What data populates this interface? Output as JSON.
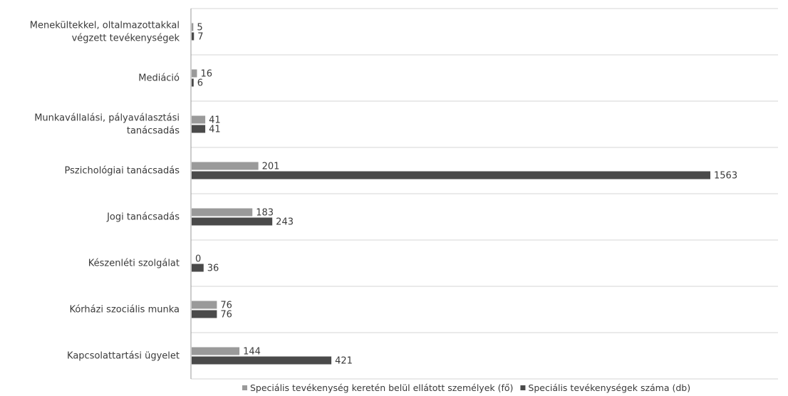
{
  "chart_data": {
    "type": "bar",
    "orientation": "horizontal",
    "title": "",
    "xlabel": "",
    "ylabel": "",
    "xlim": [
      0,
      1563
    ],
    "grid": "horizontal separators between categories",
    "legend_position": "bottom",
    "categories": [
      [
        "Menekültekkel, oltalmazottakkal",
        "végzett tevékenységek"
      ],
      [
        "Mediáció"
      ],
      [
        "Munkavállalási, pályaválasztási",
        "tanácsadás"
      ],
      [
        "Pszichológiai tanácsadás"
      ],
      [
        "Jogi tanácsadás"
      ],
      [
        "Készenléti szolgálat"
      ],
      [
        "Kórházi szociális munka"
      ],
      [
        "Kapcsolattartási ügyelet"
      ]
    ],
    "series": [
      {
        "name": "Speciális tevékenység keretén belül ellátott személyek (fő)",
        "color": "#9a9a9a",
        "values": [
          5,
          16,
          41,
          201,
          183,
          0,
          76,
          144
        ]
      },
      {
        "name": "Speciális tevékenységek száma (db)",
        "color": "#4a4a4a",
        "values": [
          7,
          6,
          41,
          1563,
          243,
          36,
          76,
          421
        ]
      }
    ]
  }
}
